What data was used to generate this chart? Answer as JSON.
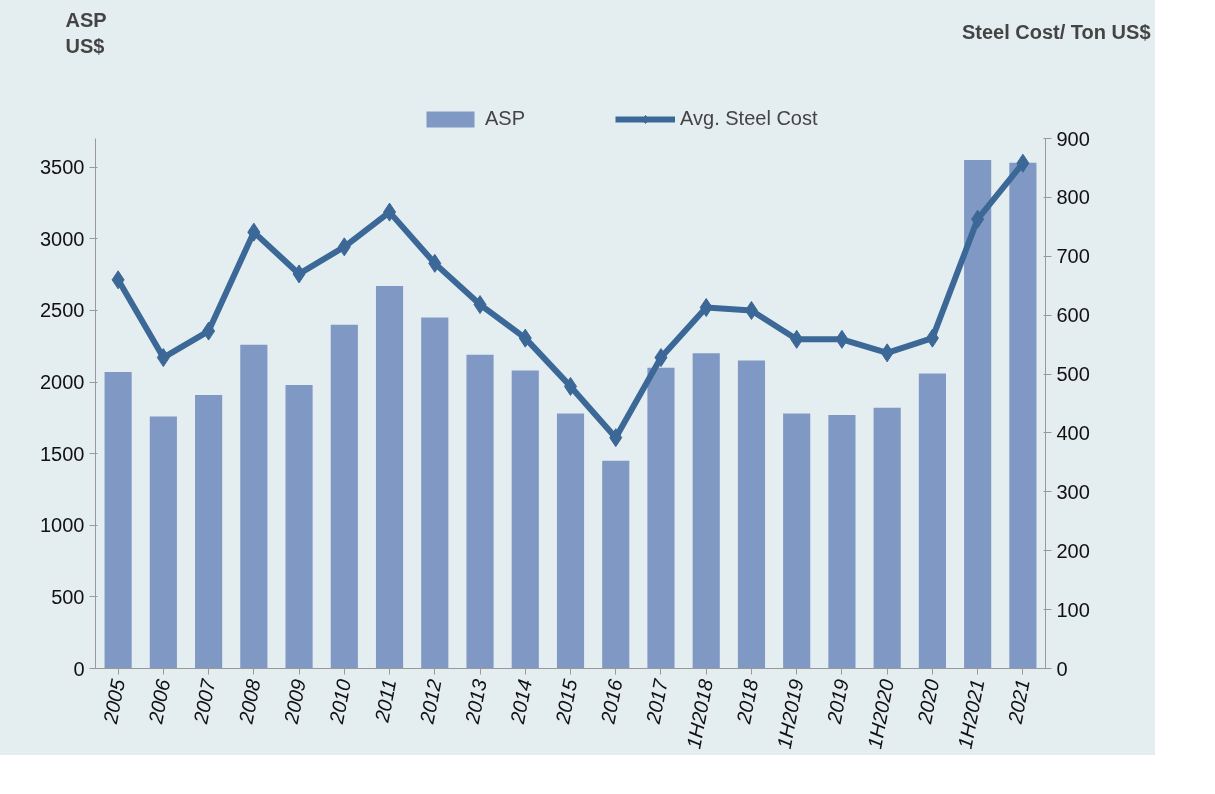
{
  "chart_data": {
    "type": "bar",
    "ylabel": "ASP\nUS$",
    "y2label": "Steel Cost/ Ton US$",
    "categories": [
      "2005",
      "2006",
      "2007",
      "2008",
      "2009",
      "2010",
      "2011",
      "2012",
      "2013",
      "2014",
      "2015",
      "2016",
      "2017",
      "1H2018",
      "2018",
      "1H2019",
      "2019",
      "1H2020",
      "2020",
      "1H2021",
      "2021"
    ],
    "series": [
      {
        "name": "ASP",
        "type": "bar",
        "color": "#8098c4",
        "values": [
          2070,
          1760,
          1910,
          2260,
          1980,
          2400,
          2670,
          2450,
          2190,
          2080,
          1780,
          1450,
          2100,
          2200,
          2150,
          1780,
          1770,
          1820,
          2060,
          3550,
          3530
        ]
      },
      {
        "name": "Avg. Steel Cost",
        "type": "line",
        "axis": "y2",
        "color": "#3b6897",
        "values": [
          660,
          528,
          573,
          741,
          670,
          716,
          775,
          688,
          618,
          561,
          479,
          392,
          528,
          613,
          608,
          559,
          559,
          536,
          561,
          763,
          858
        ]
      }
    ],
    "ylim": [
      0,
      3700
    ],
    "yticks": [
      0,
      500,
      1000,
      1500,
      2000,
      2500,
      3000,
      3500
    ],
    "y2lim": [
      0,
      900
    ],
    "y2ticks": [
      0,
      100,
      200,
      300,
      400,
      500,
      600,
      700,
      800,
      900
    ],
    "grid": false,
    "legend": "top",
    "marker": "diamond",
    "line_style": "solid"
  }
}
